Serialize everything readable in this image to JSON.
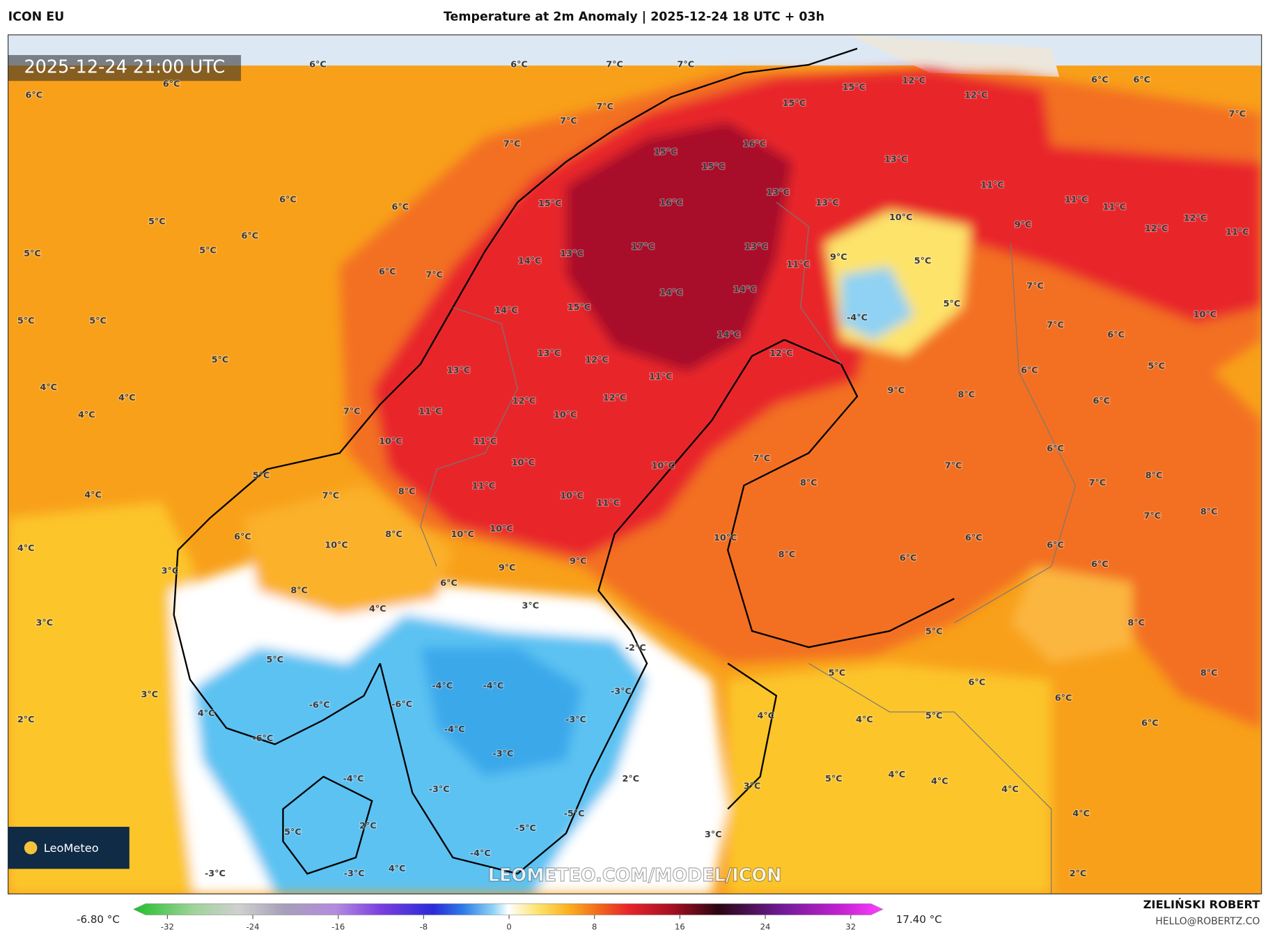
{
  "header": {
    "model": "ICON EU",
    "title": "Temperature at 2m Anomaly | 2025-12-24 18 UTC + 03h"
  },
  "map": {
    "timestamp": "2025-12-24 21:00 UTC",
    "watermark": "LEOMETEO.COM/MODEL/ICON",
    "logo": "LeoMeteo",
    "labels": [
      "6°C",
      "6°C",
      "6°C",
      "6°C",
      "7°C",
      "7°C",
      "7°C",
      "7°C",
      "7°C",
      "6°C",
      "6°C",
      "5°C",
      "6°C",
      "5°C",
      "5°C",
      "6°C",
      "7°C",
      "5°C",
      "5°C",
      "5°C",
      "4°C",
      "4°C",
      "4°C",
      "7°C",
      "5°C",
      "4°C",
      "4°C",
      "3°C",
      "3°C",
      "3°C",
      "2°C",
      "15°C",
      "12°C",
      "15°C",
      "12°C",
      "6°C",
      "6°C",
      "7°C",
      "16°C",
      "15°C",
      "15°C",
      "13°C",
      "13°C",
      "15°C",
      "16°C",
      "13°C",
      "11°C",
      "11°C",
      "11°C",
      "10°C",
      "12°C",
      "9°C",
      "12°C",
      "11°C",
      "17°C",
      "13°C",
      "13°C",
      "14°C",
      "11°C",
      "9°C",
      "5°C",
      "7°C",
      "14°C",
      "14°C",
      "14°C",
      "15°C",
      "5°C",
      "-4°C",
      "7°C",
      "6°C",
      "10°C",
      "14°C",
      "12°C",
      "13°C",
      "12°C",
      "13°C",
      "11°C",
      "6°C",
      "5°C",
      "9°C",
      "8°C",
      "12°C",
      "12°C",
      "6°C",
      "11°C",
      "10°C",
      "10°C",
      "11°C",
      "6°C",
      "10°C",
      "10°C",
      "7°C",
      "7°C",
      "7°C",
      "8°C",
      "8°C",
      "11°C",
      "7°C",
      "8°C",
      "10°C",
      "11°C",
      "7°C",
      "8°C",
      "6°C",
      "8°C",
      "10°C",
      "10°C",
      "10°C",
      "10°C",
      "6°C",
      "6°C",
      "8°C",
      "6°C",
      "9°C",
      "9°C",
      "6°C",
      "6°C",
      "8°C",
      "4°C",
      "3°C",
      "8°C",
      "5°C",
      "-2°C",
      "5°C",
      "5°C",
      "8°C",
      "6°C",
      "-4°C",
      "-4°C",
      "-3°C",
      "6°C",
      "-6°C",
      "-6°C",
      "4°C",
      "4°C",
      "4°C",
      "5°C",
      "6°C",
      "-4°C",
      "-3°C",
      "-6°C",
      "-3°C",
      "4°C",
      "4°C",
      "5°C",
      "-4°C",
      "2°C",
      "3°C",
      "4°C",
      "-3°C",
      "-5°C",
      "4°C",
      "5°C",
      "2°C",
      "-5°C",
      "3°C",
      "-4°C",
      "4°C",
      "-3°C",
      "-3°C",
      "2°C"
    ]
  },
  "legend": {
    "min_label": "-6.80 °C",
    "max_label": "17.40 °C",
    "ticks": [
      -32,
      -24,
      -16,
      -8,
      0,
      8,
      16,
      24,
      32
    ]
  },
  "credit": {
    "name": "ZIELIŃSKI ROBERT",
    "email": "HELLO@ROBERTZ.CO"
  }
}
